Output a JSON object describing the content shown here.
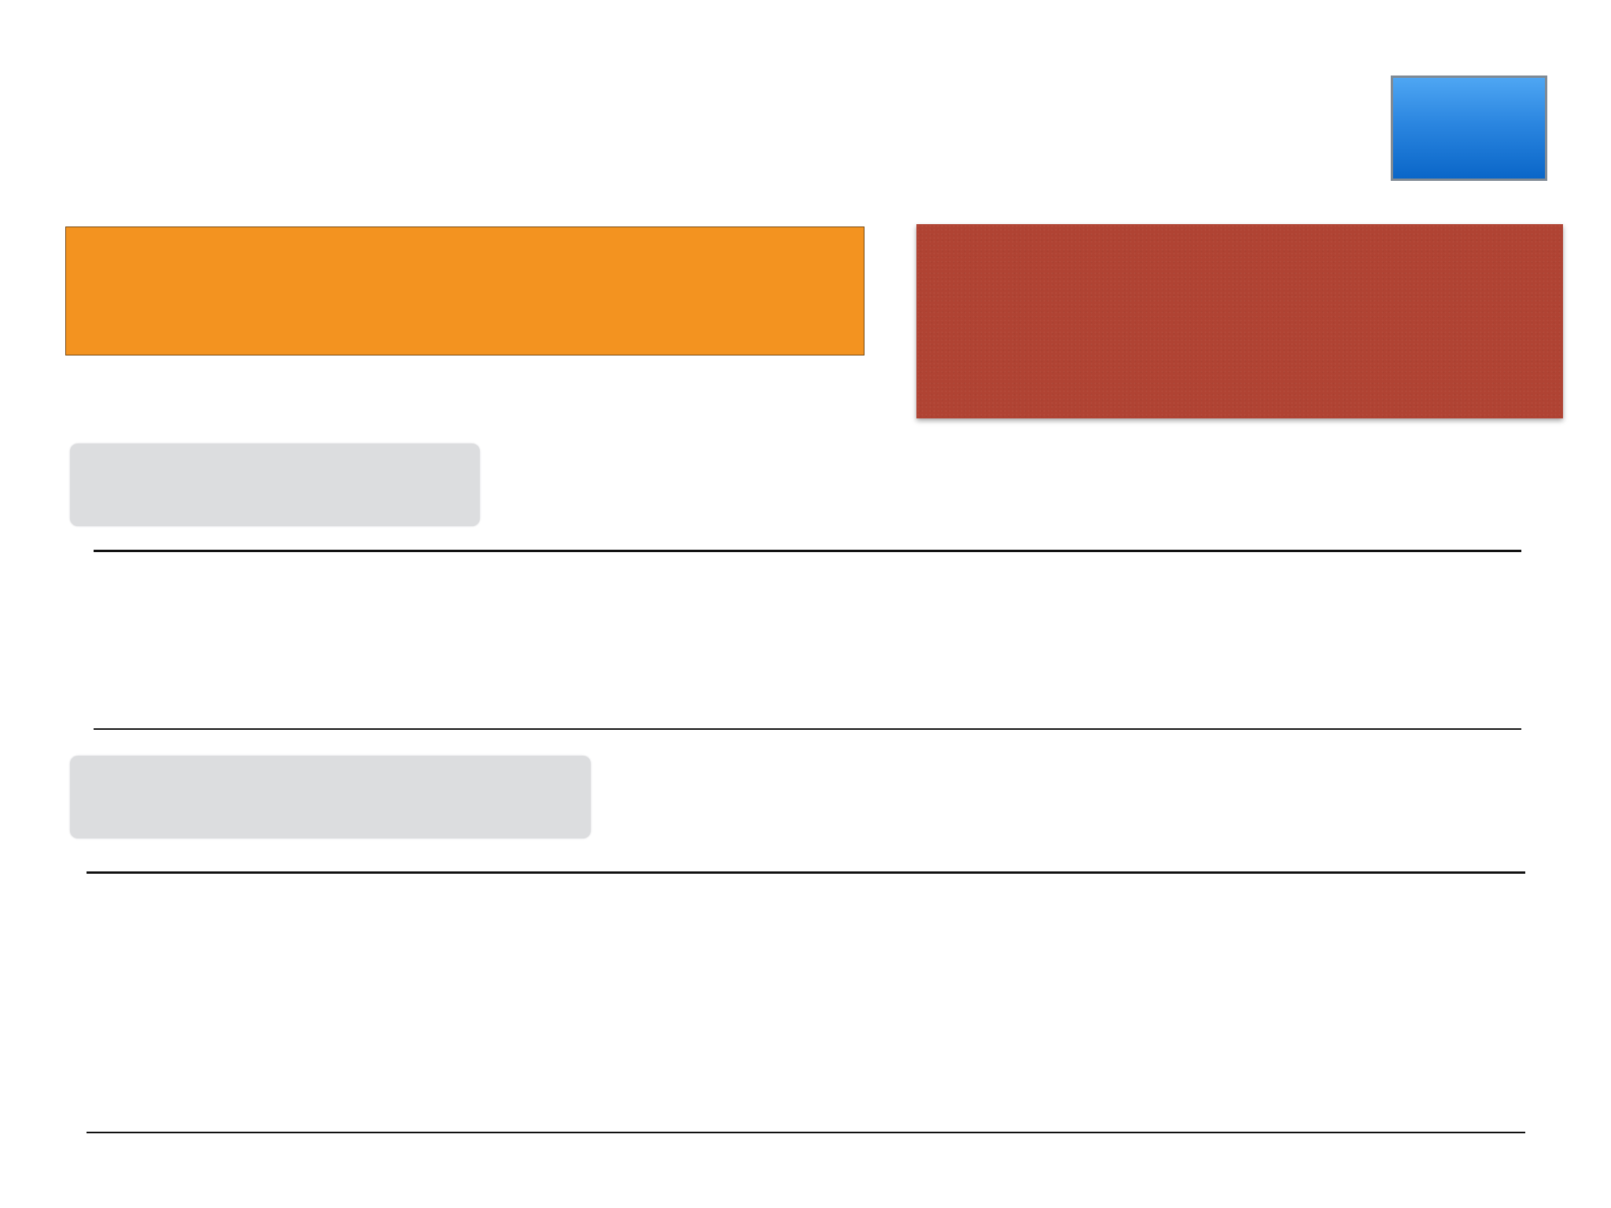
{
  "slide": {
    "button": {
      "label": ""
    },
    "orange_banner": {
      "text": ""
    },
    "red_banner": {
      "text": ""
    },
    "section_1": {
      "label": ""
    },
    "section_2": {
      "label": ""
    }
  },
  "colors": {
    "button_top": "#4ea6f3",
    "button_bottom": "#0a66c8",
    "orange": "#f39320",
    "red": "#b04333",
    "gray_label": "#dcdddf",
    "rule": "#111111"
  }
}
